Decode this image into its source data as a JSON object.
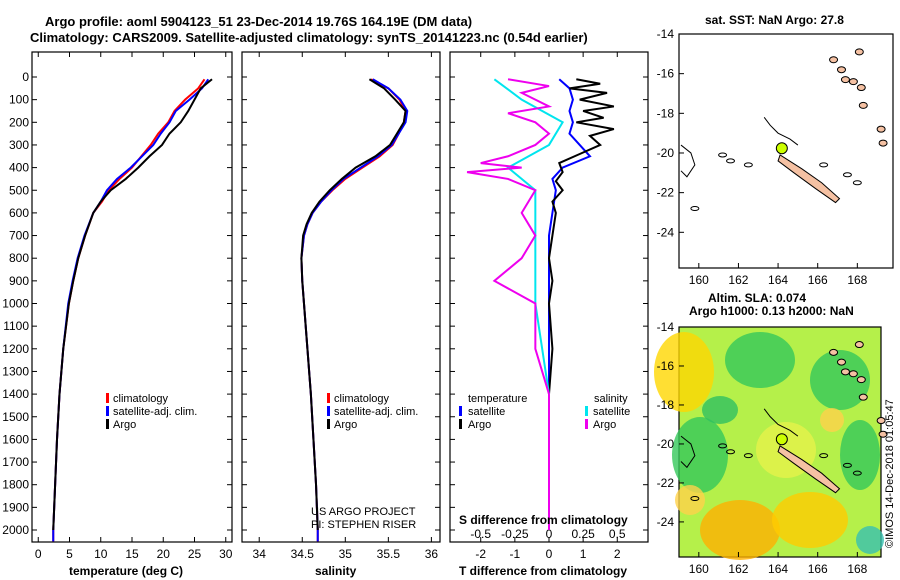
{
  "title": {
    "line1": "Argo profile: aoml 5904123_51 23-Dec-2014 19.76S 164.19E (DM data)",
    "line2": "Climatology: CARS2009. Satellite-adjusted climatology: synTS_20141223.nc (0.54d earlier)"
  },
  "colors": {
    "climatology": "#ff0000",
    "satellite": "#0000ff",
    "argo": "#000000",
    "sat_t": "#0000ff",
    "sat_s": "#00e5ee",
    "argo_s": "#ee00ee",
    "land": "#f5c1a3",
    "marker": "#ccff00"
  },
  "chart_data": [
    {
      "type": "line",
      "name": "temperature",
      "xlabel": "temperature (deg C)",
      "xlim": [
        -1,
        31
      ],
      "xticks": [
        0,
        5,
        10,
        15,
        20,
        25,
        30
      ],
      "ylim": [
        0,
        2050
      ],
      "yticks": [
        0,
        100,
        200,
        300,
        400,
        500,
        600,
        700,
        800,
        900,
        1000,
        1100,
        1200,
        1300,
        1400,
        1500,
        1600,
        1700,
        1800,
        1900,
        2000
      ],
      "legend": [
        {
          "label": "climatology",
          "color": "climatology"
        },
        {
          "label": "satellite-adj. clim.",
          "color": "satellite"
        },
        {
          "label": "Argo",
          "color": "argo"
        }
      ],
      "series": [
        {
          "name": "climatology",
          "color": "climatology",
          "depth": [
            10,
            50,
            100,
            150,
            200,
            250,
            300,
            350,
            400,
            450,
            500,
            550,
            600,
            700,
            800,
            900,
            1000,
            1200,
            1400,
            1600,
            1800,
            2000,
            2050
          ],
          "values": [
            26.6,
            25.6,
            23.5,
            21.8,
            20.8,
            19.2,
            18.0,
            16.5,
            15.0,
            13.0,
            11.3,
            10.2,
            8.8,
            7.5,
            6.4,
            5.6,
            4.9,
            4.0,
            3.4,
            3.0,
            2.7,
            2.4,
            2.4
          ]
        },
        {
          "name": "satellite-adj. clim.",
          "color": "satellite",
          "depth": [
            10,
            50,
            100,
            150,
            200,
            250,
            300,
            350,
            400,
            450,
            500,
            550,
            600,
            700,
            800,
            900,
            1000,
            1200,
            1400,
            1600,
            1800,
            2000,
            2050
          ],
          "values": [
            27.2,
            26.2,
            24.2,
            22.0,
            21.0,
            19.6,
            18.4,
            16.6,
            14.8,
            12.6,
            11.0,
            10.0,
            8.8,
            7.4,
            6.3,
            5.5,
            4.8,
            4.0,
            3.4,
            3.0,
            2.7,
            2.4,
            2.4
          ]
        },
        {
          "name": "Argo",
          "color": "argo",
          "depth": [
            10,
            50,
            100,
            150,
            200,
            250,
            300,
            350,
            400,
            450,
            500,
            550,
            600,
            700,
            800,
            900,
            1000,
            1200,
            1400,
            1600,
            1800,
            2000
          ],
          "values": [
            27.8,
            26.0,
            25.0,
            24.0,
            22.8,
            21.0,
            19.8,
            17.8,
            16.0,
            14.0,
            11.6,
            10.0,
            8.8,
            7.5,
            6.4,
            5.6,
            4.9,
            4.0,
            3.4,
            3.0,
            2.7,
            2.4
          ]
        }
      ]
    },
    {
      "type": "line",
      "name": "salinity",
      "xlabel": "salinity",
      "xlim": [
        33.8,
        36.1
      ],
      "xticks": [
        34,
        34.5,
        35,
        35.5,
        36
      ],
      "ylim": [
        0,
        2050
      ],
      "legend": [
        {
          "label": "climatology",
          "color": "climatology"
        },
        {
          "label": "satellite-adj. clim.",
          "color": "satellite"
        },
        {
          "label": "Argo",
          "color": "argo"
        }
      ],
      "annotations": [
        "US ARGO PROJECT",
        "PI: STEPHEN RISER"
      ],
      "series": [
        {
          "name": "climatology",
          "color": "climatology",
          "depth": [
            10,
            50,
            100,
            150,
            200,
            250,
            300,
            350,
            400,
            450,
            500,
            550,
            600,
            650,
            700,
            800,
            900,
            1000,
            1200,
            1400,
            1600,
            1800,
            2000,
            2050
          ],
          "values": [
            35.3,
            35.5,
            35.63,
            35.7,
            35.68,
            35.62,
            35.55,
            35.4,
            35.2,
            35.0,
            34.85,
            34.72,
            34.62,
            34.56,
            34.52,
            34.49,
            34.5,
            34.52,
            34.56,
            34.6,
            34.63,
            34.66,
            34.68,
            34.68
          ]
        },
        {
          "name": "satellite-adj. clim.",
          "color": "satellite",
          "depth": [
            10,
            50,
            100,
            150,
            200,
            250,
            300,
            350,
            400,
            450,
            500,
            550,
            600,
            650,
            700,
            800,
            900,
            1000,
            1200,
            1400,
            1600,
            1800,
            2000,
            2050
          ],
          "values": [
            35.32,
            35.5,
            35.64,
            35.72,
            35.7,
            35.62,
            35.54,
            35.38,
            35.18,
            34.98,
            34.84,
            34.72,
            34.62,
            34.56,
            34.52,
            34.49,
            34.5,
            34.52,
            34.56,
            34.6,
            34.63,
            34.66,
            34.68,
            34.68
          ]
        },
        {
          "name": "Argo",
          "color": "argo",
          "depth": [
            10,
            50,
            100,
            150,
            200,
            250,
            300,
            350,
            400,
            450,
            500,
            550,
            600,
            650,
            700,
            800,
            900,
            1000,
            1200,
            1400,
            1600,
            1800,
            2000
          ],
          "values": [
            35.28,
            35.45,
            35.58,
            35.7,
            35.68,
            35.6,
            35.52,
            35.35,
            35.12,
            34.96,
            34.82,
            34.7,
            34.61,
            34.55,
            34.51,
            34.49,
            34.5,
            34.52,
            34.56,
            34.6,
            34.63,
            34.66,
            34.68
          ]
        }
      ]
    },
    {
      "type": "line",
      "name": "differences",
      "xlabel": "T difference from climatology",
      "xlim": [
        -2.9,
        2.9
      ],
      "xticks": [
        -2,
        -1,
        0,
        1,
        2
      ],
      "xlabel2": "S difference from climatology",
      "xticks2": [
        "-0.5",
        "-0.25",
        "0",
        "0.25",
        "0.5"
      ],
      "ylim": [
        0,
        2050
      ],
      "legend_left_title": "temperature",
      "legend_right_title": "salinity",
      "legend": [
        {
          "label": "satellite",
          "color": "sat_t"
        },
        {
          "label": "Argo",
          "color": "argo"
        },
        {
          "label": "satellite",
          "color": "sat_s"
        },
        {
          "label": "Argo",
          "color": "argo_s"
        }
      ],
      "series": [
        {
          "name": "T satellite",
          "color": "sat_t",
          "depth": [
            10,
            50,
            100,
            150,
            200,
            250,
            300,
            350,
            400,
            450,
            500,
            600,
            700,
            800,
            900,
            1000,
            1200,
            1400,
            1600,
            1800,
            2000
          ],
          "values": [
            0.3,
            0.6,
            0.7,
            0.6,
            0.7,
            0.6,
            0.9,
            1.2,
            0.4,
            0.1,
            0.2,
            0.1,
            0.0,
            0.0,
            0.0,
            0.0,
            0.0,
            0.0,
            0.0,
            0.0,
            0.0
          ]
        },
        {
          "name": "T Argo",
          "color": "argo",
          "depth": [
            10,
            30,
            50,
            70,
            100,
            130,
            150,
            180,
            200,
            230,
            260,
            300,
            340,
            380,
            420,
            460,
            500,
            550,
            600,
            700,
            800,
            900,
            1000,
            1200,
            1400,
            1600,
            1800,
            2000
          ],
          "values": [
            0.8,
            1.5,
            0.6,
            1.7,
            0.9,
            1.9,
            1.0,
            1.6,
            0.8,
            1.9,
            1.2,
            1.5,
            0.9,
            0.3,
            0.4,
            0.2,
            0.4,
            0.1,
            0.2,
            0.1,
            0.0,
            0.1,
            0.0,
            0.1,
            0.0,
            0.0,
            0.0,
            0.0
          ]
        },
        {
          "name": "S satellite",
          "color": "sat_s",
          "depth": [
            10,
            100,
            200,
            300,
            400,
            500,
            600,
            800,
            1000,
            1200,
            1400,
            1600,
            1800,
            2000
          ],
          "values": [
            -0.4,
            -0.2,
            0.1,
            0.0,
            -0.3,
            -0.1,
            -0.1,
            -0.1,
            -0.1,
            -0.05,
            0.0,
            0.0,
            0.0,
            0.0
          ]
        },
        {
          "name": "S Argo",
          "color": "argo_s",
          "depth": [
            10,
            40,
            70,
            100,
            130,
            160,
            200,
            250,
            300,
            350,
            380,
            400,
            420,
            450,
            500,
            600,
            700,
            800,
            900,
            1000,
            1200,
            1400,
            1600,
            1800,
            2000
          ],
          "values": [
            -0.3,
            0.0,
            -0.2,
            -0.1,
            0.0,
            -0.3,
            -0.1,
            0.0,
            -0.1,
            -0.3,
            -0.5,
            -0.2,
            -0.6,
            -0.3,
            -0.1,
            -0.2,
            -0.1,
            -0.2,
            -0.4,
            -0.1,
            -0.1,
            0.0,
            0.0,
            0.0,
            0.0
          ]
        }
      ]
    }
  ],
  "maps": {
    "top_title": "sat. SST: NaN Argo: 27.8",
    "bottom_title1": "Altim. SLA: 0.074",
    "bottom_title2": "Argo h1000: 0.13 h2000: NaN",
    "xticks": [
      "160",
      "162",
      "164",
      "166",
      "168"
    ],
    "yticks": [
      "-14",
      "-16",
      "-18",
      "-20",
      "-22",
      "-24"
    ],
    "side_label": "©IMOS 14-Dec-2018 01:05:47"
  }
}
